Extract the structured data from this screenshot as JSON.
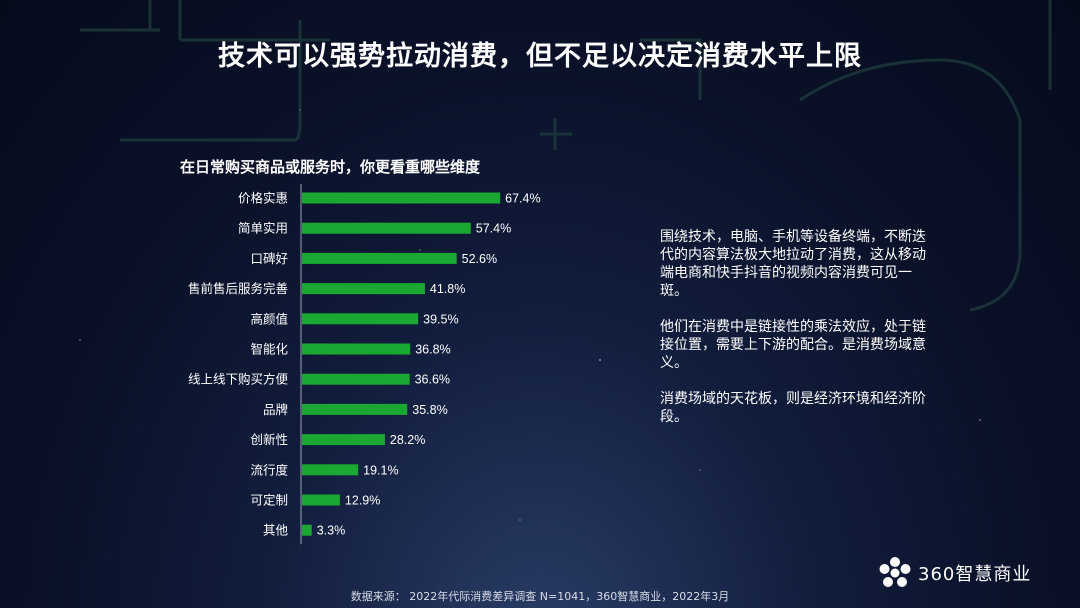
{
  "title": "技术可以强势拉动消费，但不足以决定消费水平上限",
  "chart_data": {
    "type": "bar",
    "orientation": "horizontal",
    "title": "在日常购买商品或服务时，你更看重哪些维度",
    "categories": [
      "价格实惠",
      "简单实用",
      "口碑好",
      "售前售后服务完善",
      "高颜值",
      "智能化",
      "线上线下购买方便",
      "品牌",
      "创新性",
      "流行度",
      "可定制",
      "其他"
    ],
    "values": [
      67.4,
      57.4,
      52.6,
      41.8,
      39.5,
      36.8,
      36.6,
      35.8,
      28.2,
      19.1,
      12.9,
      3.3
    ],
    "labels": [
      "67.4%",
      "57.4%",
      "52.6%",
      "41.8%",
      "39.5%",
      "36.8%",
      "36.6%",
      "35.8%",
      "28.2%",
      "19.1%",
      "12.9%",
      "3.3%"
    ],
    "xlim": [
      0,
      100
    ],
    "bar_color": "#1aa832",
    "grid": false
  },
  "paragraphs": [
    "围绕技术，电脑、手机等设备终端，不断迭代的内容算法极大地拉动了消费，这从移动端电商和快手抖音的视频内容消费可见一斑。",
    "他们在消费中是链接性的乘法效应，处于链接位置，需要上下游的配合。是消费场域意义。",
    "消费场域的天花板，则是经济环境和经济阶段。"
  ],
  "source": "数据来源： 2022年代际消费差异调查 N=1041，360智慧商业，2022年3月",
  "logo": {
    "text": "360智慧商业",
    "icon": "flower-logo-icon"
  }
}
